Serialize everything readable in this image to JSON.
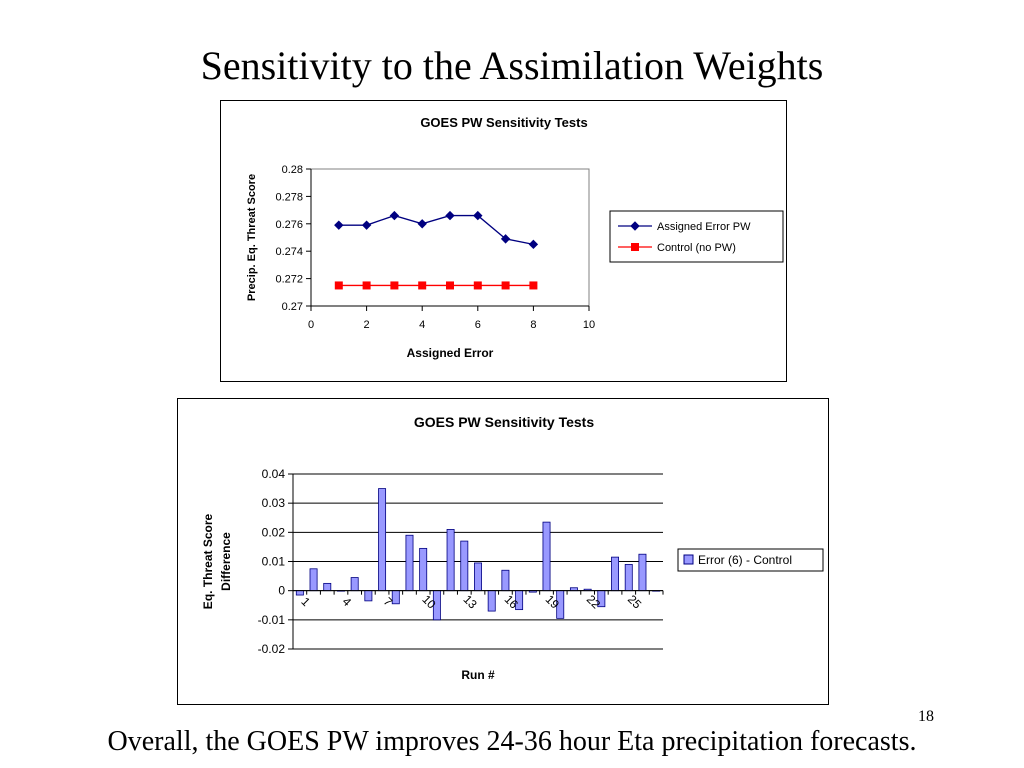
{
  "slide": {
    "title": "Sensitivity to the Assimilation Weights",
    "page_number": "18",
    "footer": "Overall, the GOES PW improves 24-36 hour Eta precipitation forecasts."
  },
  "colors": {
    "assigned_error_line": "#000080",
    "control_line": "#ff0000",
    "bar_fill": "#9999ff",
    "bar_stroke": "#000080"
  },
  "chart_data": [
    {
      "type": "line",
      "title": "GOES PW Sensitivity Tests",
      "xlabel": "Assigned Error",
      "ylabel": "Precip. Eq. Threat Score",
      "xlim": [
        0,
        10
      ],
      "ylim": [
        0.27,
        0.28
      ],
      "xticks": [
        "0",
        "2",
        "4",
        "6",
        "8",
        "10"
      ],
      "yticks": [
        "0.27",
        "0.272",
        "0.274",
        "0.276",
        "0.278",
        "0.28"
      ],
      "grid": false,
      "legend_position": "right",
      "series": [
        {
          "name": "Assigned Error PW",
          "marker": "diamond",
          "points": [
            [
              1,
              0.2759
            ],
            [
              2,
              0.2759
            ],
            [
              3,
              0.2766
            ],
            [
              4,
              0.276
            ],
            [
              5,
              0.2766
            ],
            [
              6,
              0.2766
            ],
            [
              7,
              0.2749
            ],
            [
              8,
              0.2745
            ]
          ]
        },
        {
          "name": "Control (no PW)",
          "marker": "square",
          "points": [
            [
              1,
              0.2715
            ],
            [
              2,
              0.2715
            ],
            [
              3,
              0.2715
            ],
            [
              4,
              0.2715
            ],
            [
              5,
              0.2715
            ],
            [
              6,
              0.2715
            ],
            [
              7,
              0.2715
            ],
            [
              8,
              0.2715
            ]
          ]
        }
      ]
    },
    {
      "type": "bar",
      "title": "GOES PW Sensitivity Tests",
      "xlabel": "Run #",
      "ylabel_lines": [
        "Eq. Threat Score",
        "Difference"
      ],
      "ylim": [
        -0.02,
        0.04
      ],
      "yticks": [
        "-0.02",
        "-0.01",
        "0",
        "0.01",
        "0.02",
        "0.03",
        "0.04"
      ],
      "xtick_labels": [
        "1",
        "4",
        "7",
        "10",
        "13",
        "16",
        "19",
        "22",
        "25"
      ],
      "xtick_runs": [
        1,
        4,
        7,
        10,
        13,
        16,
        19,
        22,
        25
      ],
      "grid": true,
      "legend_position": "right",
      "categories": [
        1,
        2,
        3,
        4,
        5,
        6,
        7,
        8,
        9,
        10,
        11,
        12,
        13,
        14,
        15,
        16,
        17,
        18,
        19,
        20,
        21,
        22,
        23,
        24,
        25,
        26,
        27
      ],
      "series": [
        {
          "name": "Error (6) - Control",
          "values": [
            -0.0015,
            0.0075,
            0.0025,
            0,
            0.0045,
            -0.0035,
            0.035,
            -0.0045,
            0.019,
            0.0145,
            -0.01,
            0.021,
            0.017,
            0.0095,
            -0.007,
            0.007,
            -0.0065,
            -0.0005,
            0.0235,
            -0.0095,
            0.001,
            0.0005,
            -0.0055,
            0.0115,
            0.009,
            0.0125,
            0
          ]
        }
      ]
    }
  ]
}
